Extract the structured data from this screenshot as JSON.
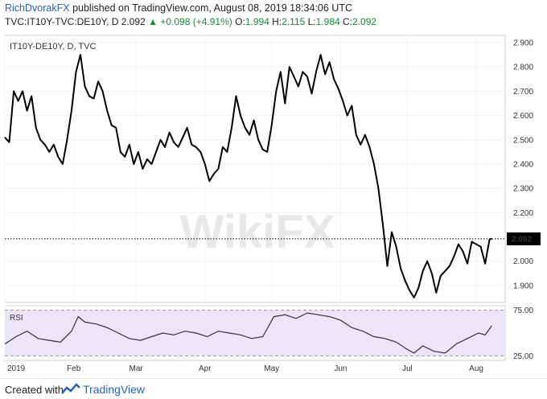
{
  "header": {
    "author": "RichDvorakFX",
    "published_text": "published on TradingView.com, August 08, 2019 18:34:06 UTC",
    "symbol": "TVC:IT10Y-TVC:DE10Y, D",
    "last": "2.092",
    "change": "+0.098 (+4.91%)",
    "o_label": "O:",
    "o_value": "1.994",
    "h_label": "H:",
    "h_value": "2.115",
    "l_label": "L:",
    "l_value": "1.984",
    "c_label": "C:",
    "c_value": "2.092"
  },
  "legend": {
    "title": "IT10Y-DE10Y, D, TVC"
  },
  "watermark": "WikiFX",
  "footer": {
    "created": "Created with",
    "brand": "TradingView"
  },
  "colors": {
    "price_line": "#000000",
    "rsi_line": "#333333",
    "rsi_band": "#ece4f8",
    "author": "#2962b8",
    "up": "#1d8a3a"
  },
  "chart_data": [
    {
      "type": "line",
      "series": [
        {
          "name": "IT10Y-DE10Y",
          "x": [
            "2019-01-01",
            "2019-01-03",
            "2019-01-05",
            "2019-01-07",
            "2019-01-09",
            "2019-01-11",
            "2019-01-13",
            "2019-01-15",
            "2019-01-17",
            "2019-01-19",
            "2019-01-21",
            "2019-01-23",
            "2019-01-25",
            "2019-01-27",
            "2019-01-29",
            "2019-01-31",
            "2019-02-02",
            "2019-02-04",
            "2019-02-06",
            "2019-02-08",
            "2019-02-10",
            "2019-02-12",
            "2019-02-14",
            "2019-02-16",
            "2019-02-18",
            "2019-02-20",
            "2019-02-22",
            "2019-02-24",
            "2019-02-26",
            "2019-02-28",
            "2019-03-02",
            "2019-03-04",
            "2019-03-06",
            "2019-03-08",
            "2019-03-10",
            "2019-03-12",
            "2019-03-14",
            "2019-03-16",
            "2019-03-18",
            "2019-03-20",
            "2019-03-22",
            "2019-03-24",
            "2019-03-26",
            "2019-03-28",
            "2019-03-30",
            "2019-04-01",
            "2019-04-03",
            "2019-04-05",
            "2019-04-07",
            "2019-04-09",
            "2019-04-11",
            "2019-04-13",
            "2019-04-15",
            "2019-04-17",
            "2019-04-19",
            "2019-04-21",
            "2019-04-23",
            "2019-04-25",
            "2019-04-27",
            "2019-04-29",
            "2019-05-01",
            "2019-05-03",
            "2019-05-05",
            "2019-05-07",
            "2019-05-09",
            "2019-05-11",
            "2019-05-13",
            "2019-05-15",
            "2019-05-17",
            "2019-05-19",
            "2019-05-21",
            "2019-05-23",
            "2019-05-25",
            "2019-05-27",
            "2019-05-29",
            "2019-05-31",
            "2019-06-02",
            "2019-06-04",
            "2019-06-06",
            "2019-06-08",
            "2019-06-10",
            "2019-06-12",
            "2019-06-14",
            "2019-06-16",
            "2019-06-18",
            "2019-06-20",
            "2019-06-22",
            "2019-06-24",
            "2019-06-26",
            "2019-06-28",
            "2019-06-30",
            "2019-07-02",
            "2019-07-04",
            "2019-07-06",
            "2019-07-08",
            "2019-07-10",
            "2019-07-12",
            "2019-07-14",
            "2019-07-16",
            "2019-07-18",
            "2019-07-20",
            "2019-07-22",
            "2019-07-24",
            "2019-07-26",
            "2019-07-28",
            "2019-07-30",
            "2019-08-01",
            "2019-08-03",
            "2019-08-05",
            "2019-08-07",
            "2019-08-08"
          ],
          "y": [
            2.51,
            2.49,
            2.7,
            2.66,
            2.7,
            2.62,
            2.68,
            2.55,
            2.5,
            2.48,
            2.45,
            2.48,
            2.43,
            2.4,
            2.5,
            2.62,
            2.78,
            2.85,
            2.72,
            2.68,
            2.67,
            2.74,
            2.7,
            2.62,
            2.56,
            2.55,
            2.45,
            2.43,
            2.48,
            2.4,
            2.45,
            2.38,
            2.42,
            2.4,
            2.45,
            2.5,
            2.47,
            2.53,
            2.49,
            2.47,
            2.51,
            2.55,
            2.48,
            2.47,
            2.45,
            2.4,
            2.33,
            2.36,
            2.38,
            2.47,
            2.45,
            2.55,
            2.68,
            2.6,
            2.55,
            2.52,
            2.58,
            2.5,
            2.46,
            2.45,
            2.56,
            2.7,
            2.78,
            2.65,
            2.8,
            2.76,
            2.72,
            2.78,
            2.76,
            2.69,
            2.78,
            2.85,
            2.77,
            2.82,
            2.75,
            2.71,
            2.66,
            2.6,
            2.64,
            2.52,
            2.48,
            2.52,
            2.47,
            2.4,
            2.3,
            2.15,
            1.98,
            2.12,
            2.06,
            1.97,
            1.92,
            1.88,
            1.85,
            1.89,
            1.96,
            2.0,
            1.95,
            1.87,
            1.94,
            1.96,
            1.98,
            2.02,
            2.07,
            2.04,
            1.99,
            2.08,
            2.07,
            2.06,
            1.99,
            2.09,
            2.092
          ]
        }
      ],
      "ylim": [
        1.83,
        2.93
      ],
      "yticks": [
        "2.900",
        "2.800",
        "2.700",
        "2.600",
        "2.500",
        "2.400",
        "2.300",
        "2.200",
        "2.100",
        "2.000",
        "1.900"
      ],
      "last_value_label": "2.092",
      "legend": "top-left",
      "grid": true
    },
    {
      "type": "line",
      "series": [
        {
          "name": "RSI",
          "x": [
            "2019-01-01",
            "2019-01-06",
            "2019-01-11",
            "2019-01-16",
            "2019-01-21",
            "2019-01-26",
            "2019-01-31",
            "2019-02-03",
            "2019-02-06",
            "2019-02-11",
            "2019-02-16",
            "2019-02-21",
            "2019-02-26",
            "2019-03-03",
            "2019-03-08",
            "2019-03-13",
            "2019-03-18",
            "2019-03-23",
            "2019-03-28",
            "2019-04-02",
            "2019-04-07",
            "2019-04-12",
            "2019-04-17",
            "2019-04-22",
            "2019-04-27",
            "2019-05-02",
            "2019-05-07",
            "2019-05-12",
            "2019-05-17",
            "2019-05-22",
            "2019-05-27",
            "2019-06-01",
            "2019-06-06",
            "2019-06-11",
            "2019-06-16",
            "2019-06-21",
            "2019-06-26",
            "2019-07-01",
            "2019-07-04",
            "2019-07-08",
            "2019-07-13",
            "2019-07-18",
            "2019-07-23",
            "2019-07-28",
            "2019-08-02",
            "2019-08-05",
            "2019-08-08"
          ],
          "y": [
            38,
            46,
            52,
            44,
            42,
            40,
            52,
            68,
            62,
            60,
            56,
            50,
            44,
            42,
            46,
            50,
            48,
            52,
            50,
            46,
            52,
            50,
            48,
            44,
            46,
            68,
            70,
            66,
            72,
            70,
            68,
            64,
            56,
            52,
            46,
            44,
            40,
            32,
            28,
            36,
            30,
            28,
            38,
            44,
            50,
            48,
            58
          ]
        }
      ],
      "ylim": [
        20,
        80
      ],
      "yticks": [
        "75.00",
        "25.00"
      ],
      "bands": [
        25,
        75
      ],
      "xticks": [
        "2019",
        "Feb",
        "Mar",
        "Apr",
        "May",
        "Jun",
        "Jul",
        "Aug"
      ]
    }
  ]
}
